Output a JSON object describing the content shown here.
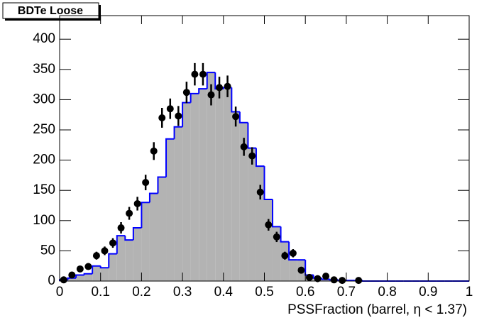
{
  "chart_data": {
    "type": "histogram",
    "title": "BDTe Loose",
    "x_label": "PSSFraction (barrel,  η < 1.37)",
    "bins": [
      0,
      0.02,
      0.04,
      0.06,
      0.08,
      0.1,
      0.12,
      0.14,
      0.16,
      0.18,
      0.2,
      0.22,
      0.24,
      0.26,
      0.28,
      0.3,
      0.32,
      0.34,
      0.36,
      0.38,
      0.4,
      0.42,
      0.44,
      0.46,
      0.48,
      0.5,
      0.52,
      0.54,
      0.56,
      0.58,
      0.6,
      0.62,
      0.64,
      0.66,
      0.68,
      0.7,
      0.72,
      0.74,
      0.76,
      0.78,
      0.8,
      0.82,
      0.84,
      0.86,
      0.88,
      0.9,
      0.92,
      0.94,
      0.96,
      0.98,
      1
    ],
    "counts": [
      2,
      5,
      10,
      12,
      25,
      22,
      45,
      75,
      68,
      88,
      130,
      145,
      172,
      235,
      255,
      295,
      310,
      318,
      345,
      318,
      320,
      280,
      262,
      220,
      190,
      135,
      90,
      65,
      35,
      35,
      10,
      5,
      3,
      2,
      1,
      1,
      1,
      0,
      0,
      0,
      0,
      0,
      0,
      0,
      0,
      0,
      0,
      0,
      0,
      0
    ],
    "fill_color": "#b3b3b3",
    "line_color": "#0000ff",
    "points": {
      "color": "#000000",
      "x": [
        0.01,
        0.03,
        0.05,
        0.07,
        0.09,
        0.11,
        0.13,
        0.15,
        0.17,
        0.19,
        0.21,
        0.23,
        0.25,
        0.27,
        0.29,
        0.31,
        0.33,
        0.35,
        0.37,
        0.39,
        0.41,
        0.43,
        0.45,
        0.47,
        0.49,
        0.51,
        0.53,
        0.55,
        0.57,
        0.59,
        0.61,
        0.63,
        0.65,
        0.67,
        0.69,
        0.73
      ],
      "values": [
        2,
        10,
        20,
        24,
        42,
        50,
        63,
        88,
        112,
        128,
        163,
        215,
        270,
        285,
        273,
        312,
        342,
        342,
        308,
        320,
        322,
        272,
        222,
        207,
        147,
        93,
        73,
        42,
        46,
        18,
        6,
        4,
        8,
        2,
        1,
        1
      ],
      "errors": [
        1.4,
        3.2,
        4.5,
        4.9,
        6.5,
        7.1,
        7.9,
        9.4,
        10.6,
        11.3,
        12.8,
        14.7,
        16.4,
        16.9,
        16.5,
        17.7,
        18.5,
        18.5,
        17.5,
        17.9,
        17.9,
        16.5,
        14.9,
        14.4,
        12.1,
        9.6,
        8.5,
        6.5,
        6.8,
        4.2,
        2.4,
        2,
        2.8,
        1.4,
        1,
        1
      ]
    },
    "xlim": [
      0,
      1
    ],
    "ylim": [
      0,
      439
    ],
    "xticks": [
      0,
      0.1,
      0.2,
      0.3,
      0.4,
      0.5,
      0.6,
      0.7,
      0.8,
      0.9,
      1
    ],
    "yticks": [
      0,
      50,
      100,
      150,
      200,
      250,
      300,
      350,
      400
    ]
  }
}
